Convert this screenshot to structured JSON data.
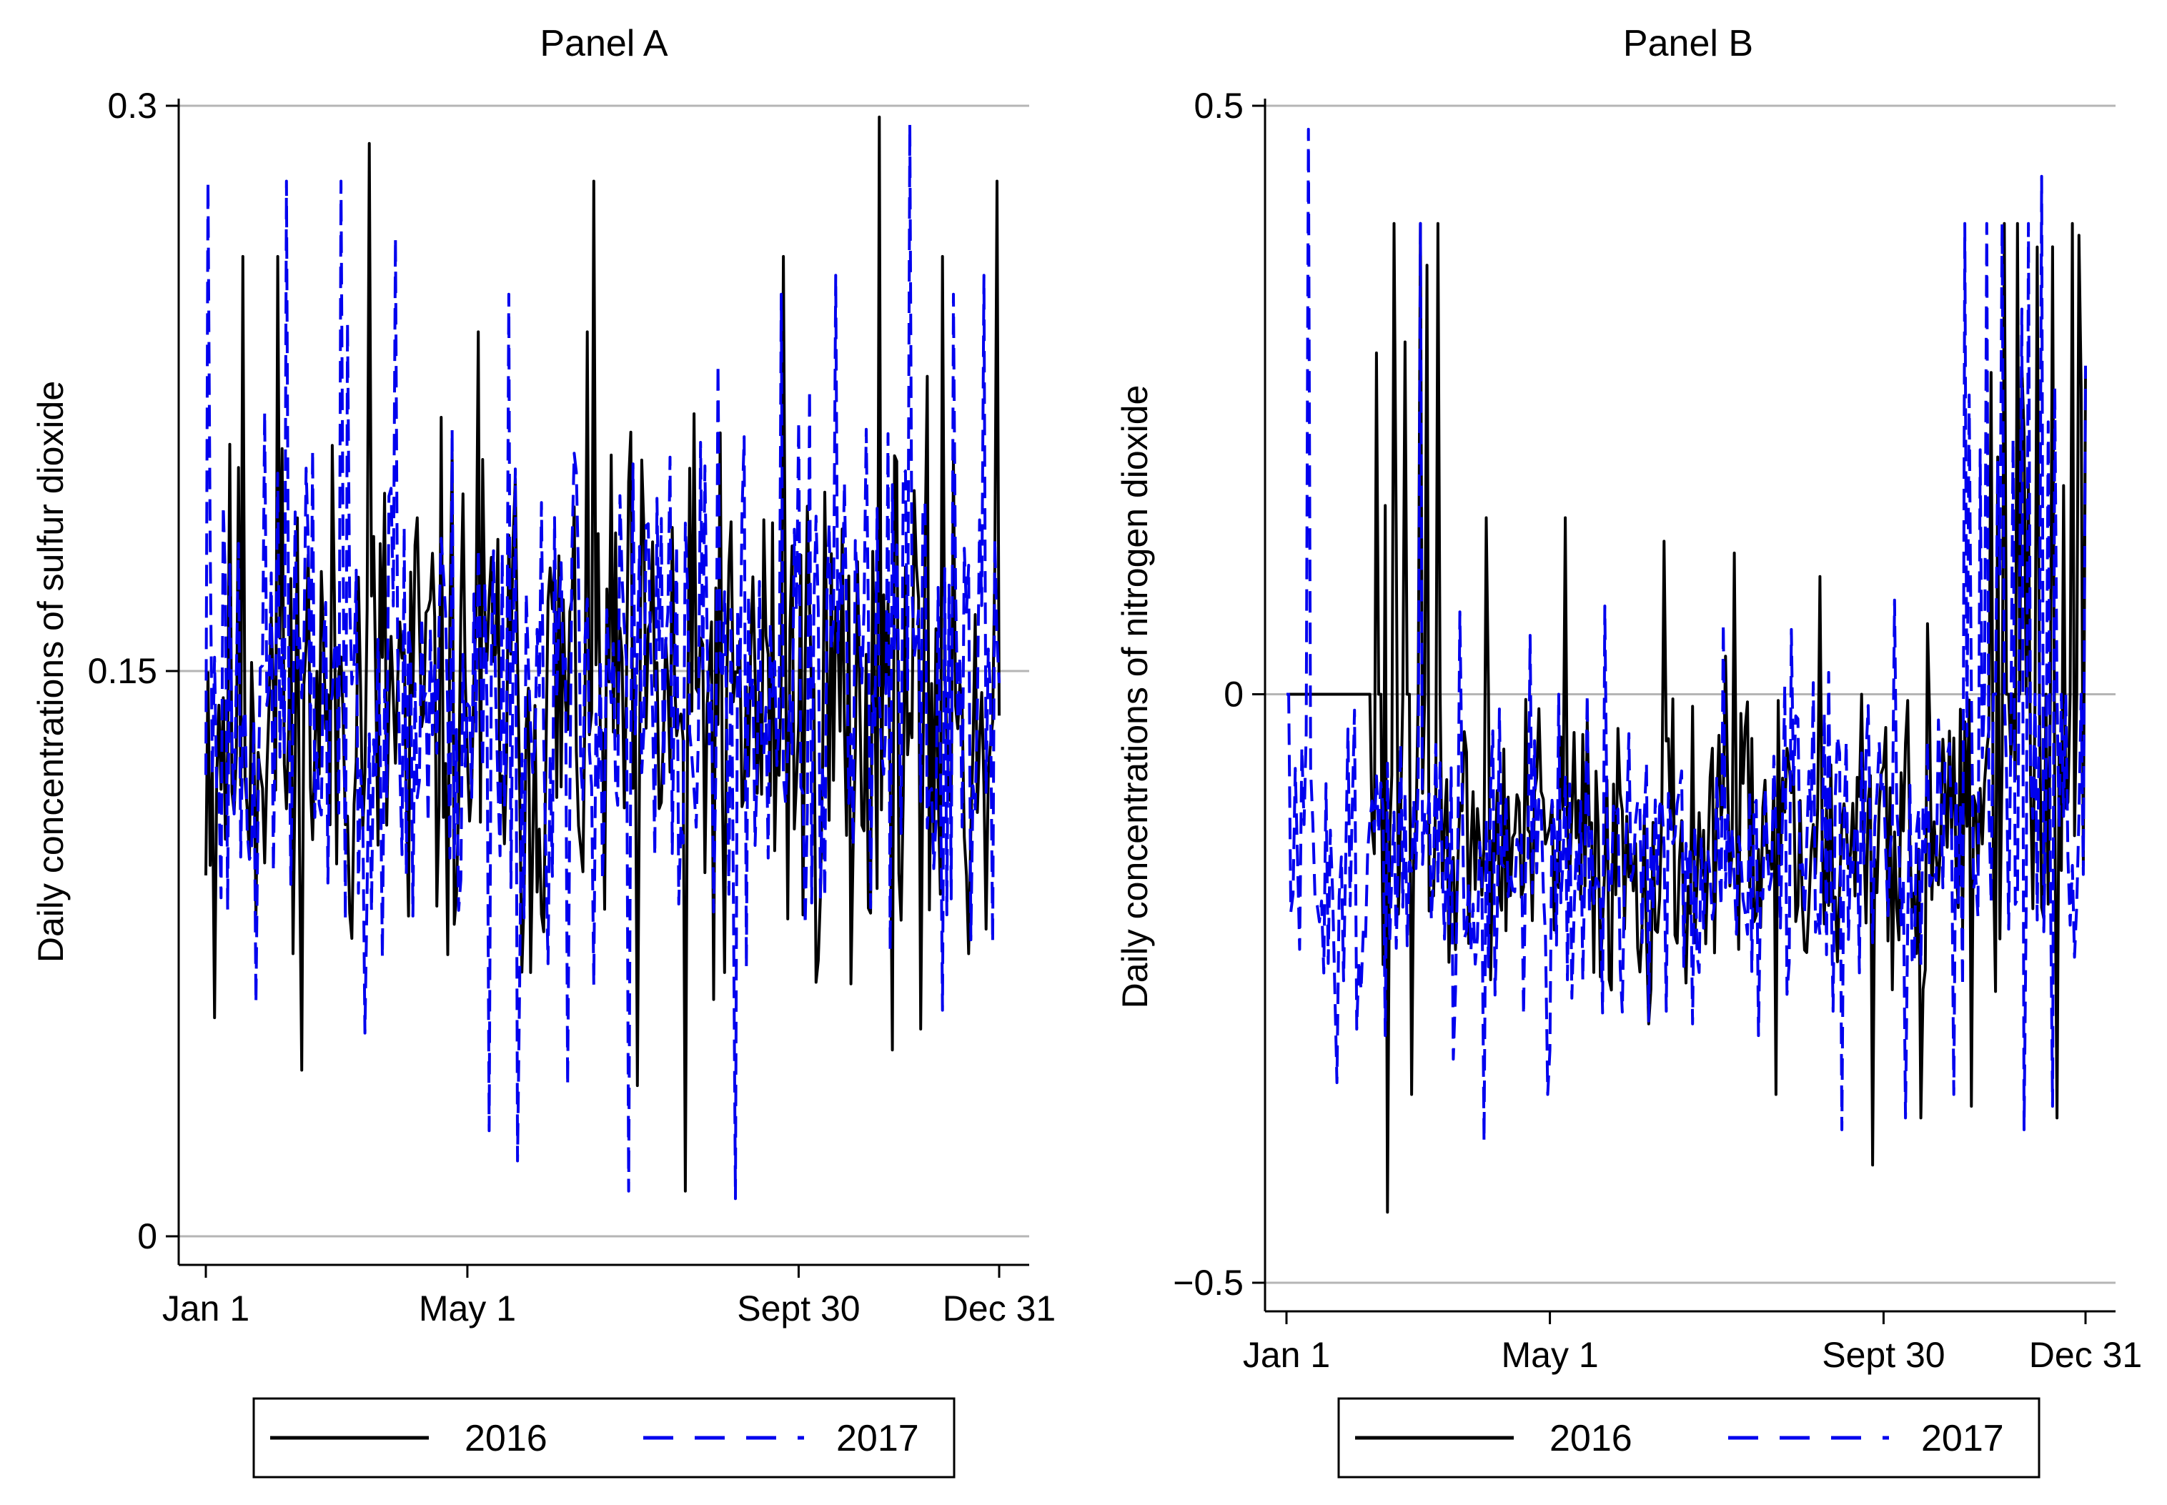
{
  "colors": {
    "series_2016": "#000000",
    "series_2017": "#0000ee",
    "grid": "#b5b5b5",
    "axis": "#000000"
  },
  "chart_data": [
    {
      "type": "line",
      "title": "Panel A",
      "xlabel": "",
      "ylabel": "Daily concentrations of sulfur dioxide",
      "xlim": [
        1,
        365
      ],
      "ylim": [
        0,
        0.3
      ],
      "x_ticks": [
        1,
        121,
        273,
        365
      ],
      "x_tick_labels": [
        "Jan 1",
        "May 1",
        "Sept 30",
        "Dec 31"
      ],
      "y_ticks": [
        0,
        0.15,
        0.3
      ],
      "y_tick_labels": [
        "0",
        "0.15",
        "0.3"
      ],
      "grid": true,
      "legend": {
        "entries": [
          "2016",
          "2017"
        ],
        "placement": "bottom"
      },
      "series": [
        {
          "name": "2016",
          "style": "solid",
          "seed": 11,
          "base": 0.14,
          "spread": 0.05,
          "peaks": [
            [
              18,
              0.26
            ],
            [
              34,
              0.26
            ],
            [
              76,
              0.29
            ],
            [
              126,
              0.24
            ],
            [
              179,
              0.28
            ],
            [
              266,
              0.26
            ],
            [
              310,
              0.3
            ],
            [
              339,
              0.26
            ],
            [
              364,
              0.28
            ]
          ],
          "dips": [
            [
              5,
              0.058
            ],
            [
              41,
              0.075
            ],
            [
              94,
              0.085
            ],
            [
              150,
              0.07
            ],
            [
              199,
              0.04
            ],
            [
              221,
              0.012
            ],
            [
              239,
              0.07
            ],
            [
              297,
              0.067
            ],
            [
              329,
              0.055
            ],
            [
              351,
              0.075
            ]
          ]
        },
        {
          "name": "2017",
          "style": "dashed",
          "seed": 23,
          "base": 0.145,
          "spread": 0.05,
          "peaks": [
            [
              2,
              0.28
            ],
            [
              38,
              0.28
            ],
            [
              63,
              0.28
            ],
            [
              88,
              0.265
            ],
            [
              140,
              0.25
            ],
            [
              265,
              0.25
            ],
            [
              290,
              0.255
            ],
            [
              324,
              0.295
            ],
            [
              344,
              0.25
            ],
            [
              358,
              0.255
            ]
          ],
          "dips": [
            [
              24,
              0.062
            ],
            [
              96,
              0.085
            ],
            [
              131,
              0.028
            ],
            [
              144,
              0.02
            ],
            [
              167,
              0.04
            ],
            [
              195,
              0.012
            ],
            [
              244,
              0.01
            ],
            [
              283,
              0.09
            ],
            [
              339,
              0.06
            ],
            [
              362,
              0.078
            ]
          ]
        }
      ]
    },
    {
      "type": "line",
      "title": "Panel B",
      "xlabel": "",
      "ylabel": "Daily concentrations of nitrogen dioxide",
      "xlim": [
        1,
        365
      ],
      "ylim": [
        -0.5,
        0.5
      ],
      "x_ticks": [
        1,
        121,
        273,
        365
      ],
      "x_tick_labels": [
        "Jan 1",
        "May 1",
        "Sept 30",
        "Dec 31"
      ],
      "y_ticks": [
        -0.5,
        0,
        0.5
      ],
      "y_tick_labels": [
        "−0.5",
        "0",
        "0.5"
      ],
      "grid": true,
      "legend": {
        "entries": [
          "2016",
          "2017"
        ],
        "placement": "bottom"
      },
      "series": [
        {
          "name": "2016",
          "style": "solid",
          "seed": 37,
          "base": -0.13,
          "spread": 0.09,
          "peaks": [
            [
              42,
              0.29
            ],
            [
              50,
              0.4
            ],
            [
              62,
              0.4
            ],
            [
              70,
              0.4
            ],
            [
              92,
              0.15
            ],
            [
              128,
              0.15
            ],
            [
              173,
              0.13
            ],
            [
              205,
              0.12
            ],
            [
              244,
              0.1
            ],
            [
              293,
              0.06
            ],
            [
              328,
              0.4
            ],
            [
              334,
              0.4
            ],
            [
              343,
              0.38
            ],
            [
              359,
              0.4
            ],
            [
              362,
              0.39
            ]
          ],
          "peak_start": 40,
          "peak_end": 72,
          "late_peak_start": 322,
          "dips": [
            [
              47,
              -0.44
            ],
            [
              58,
              -0.34
            ],
            [
              166,
              -0.28
            ],
            [
              224,
              -0.34
            ],
            [
              244,
              -0.36
            ],
            [
              268,
              -0.4
            ],
            [
              290,
              -0.36
            ],
            [
              313,
              -0.35
            ],
            [
              352,
              -0.36
            ]
          ]
        },
        {
          "name": "2017",
          "style": "dashed",
          "seed": 51,
          "base": -0.14,
          "spread": 0.09,
          "peaks": [
            [
              11,
              0.48
            ],
            [
              62,
              0.4
            ],
            [
              80,
              0.07
            ],
            [
              112,
              0.05
            ],
            [
              146,
              0.075
            ],
            [
              200,
              0.06
            ],
            [
              231,
              0.055
            ],
            [
              278,
              0.08
            ],
            [
              310,
              0.4
            ],
            [
              320,
              0.4
            ],
            [
              327,
              0.4
            ],
            [
              339,
              0.4
            ],
            [
              345,
              0.44
            ]
          ],
          "late_peak_start": 305,
          "dips": [
            [
              4,
              -0.17
            ],
            [
              24,
              -0.33
            ],
            [
              46,
              -0.29
            ],
            [
              77,
              -0.31
            ],
            [
              91,
              -0.38
            ],
            [
              120,
              -0.34
            ],
            [
              154,
              -0.27
            ],
            [
              186,
              -0.28
            ],
            [
              216,
              -0.29
            ],
            [
              254,
              -0.37
            ],
            [
              283,
              -0.36
            ],
            [
              305,
              -0.34
            ],
            [
              337,
              -0.37
            ],
            [
              350,
              -0.35
            ]
          ]
        }
      ]
    }
  ]
}
